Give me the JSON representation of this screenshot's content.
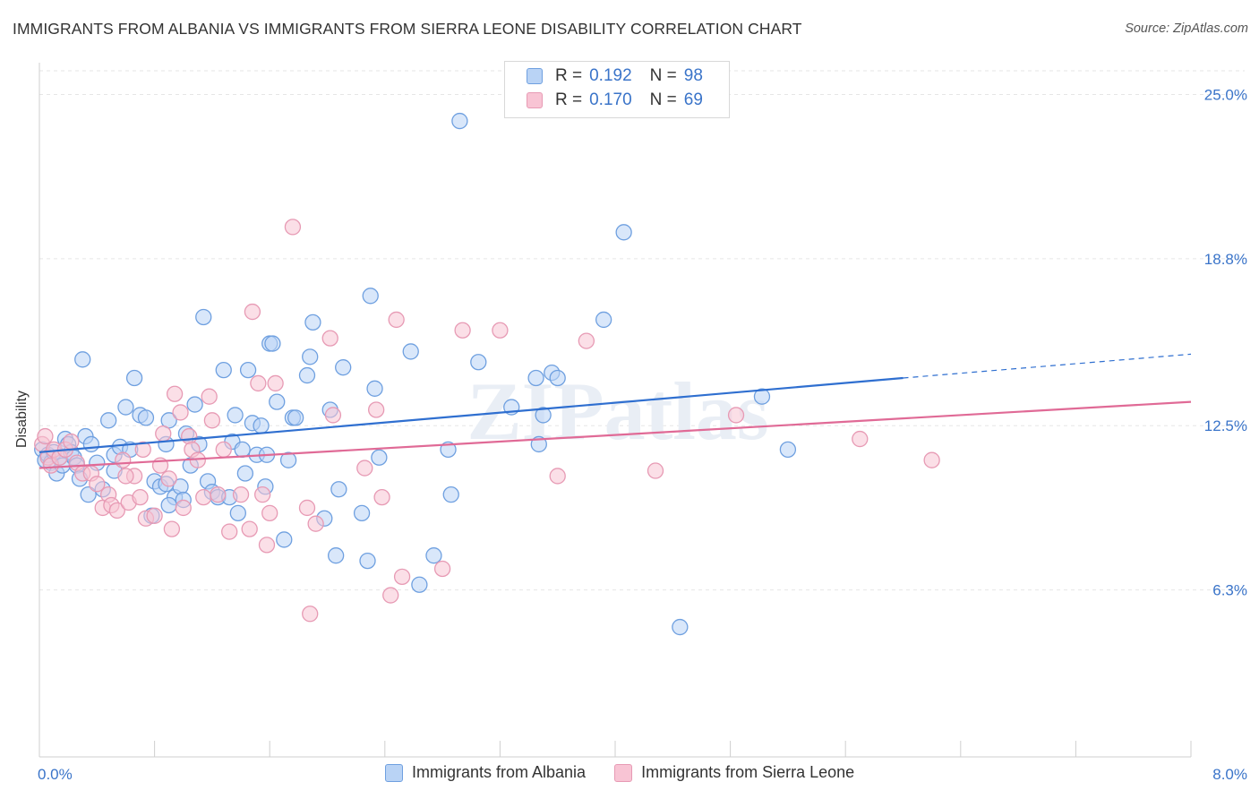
{
  "title": "IMMIGRANTS FROM ALBANIA VS IMMIGRANTS FROM SIERRA LEONE DISABILITY CORRELATION CHART",
  "source": "Source: ZipAtlas.com",
  "watermark": "ZIPatlas",
  "legend_top": {
    "rows": [
      {
        "r_label": "R =",
        "r_value": "0.192",
        "n_label": "N =",
        "n_value": "98"
      },
      {
        "r_label": "R =",
        "r_value": "0.170",
        "n_label": "N =",
        "n_value": "69"
      }
    ]
  },
  "legend_bottom": [
    "Immigrants from Albania",
    "Immigrants from Sierra Leone"
  ],
  "colors": {
    "albania_fill": "#b9d3f5",
    "albania_stroke": "#6fa0e0",
    "albania_line": "#2f6fd0",
    "sierra_fill": "#f8c4d4",
    "sierra_stroke": "#e79ab4",
    "sierra_line": "#e06a96",
    "tick_text": "#3a74c9",
    "grid": "#e6e6e6"
  },
  "chart_data": {
    "type": "scatter",
    "title": "IMMIGRANTS FROM ALBANIA VS IMMIGRANTS FROM SIERRA LEONE DISABILITY CORRELATION CHART",
    "xlabel": "",
    "ylabel": "Disability",
    "xlim": [
      0,
      8
    ],
    "ylim": [
      0,
      26.2
    ],
    "x_tick_labels": [
      {
        "value": 0,
        "label": "0.0%"
      },
      {
        "value": 8,
        "label": "8.0%"
      }
    ],
    "y_tick_labels": [
      {
        "value": 6.3,
        "label": "6.3%"
      },
      {
        "value": 12.5,
        "label": "12.5%"
      },
      {
        "value": 18.8,
        "label": "18.8%"
      },
      {
        "value": 25.0,
        "label": "25.0%"
      }
    ],
    "grid": true,
    "legend_placement": "top-center",
    "series": [
      {
        "name": "Immigrants from Albania",
        "R": 0.192,
        "N": 98,
        "trend": {
          "x0": 0,
          "y0": 11.5,
          "x1": 6.0,
          "y1": 14.3,
          "dash_to_x": 8.0,
          "dash_to_y": 15.2
        },
        "points": [
          [
            0.02,
            11.6
          ],
          [
            0.04,
            11.2
          ],
          [
            0.06,
            11.4
          ],
          [
            0.08,
            11.1
          ],
          [
            0.1,
            11.5
          ],
          [
            0.12,
            10.7
          ],
          [
            0.14,
            11.3
          ],
          [
            0.16,
            11.0
          ],
          [
            0.18,
            12.0
          ],
          [
            0.2,
            11.8
          ],
          [
            0.22,
            11.5
          ],
          [
            0.24,
            11.3
          ],
          [
            0.26,
            11.0
          ],
          [
            0.28,
            10.5
          ],
          [
            0.3,
            15.0
          ],
          [
            0.32,
            12.1
          ],
          [
            0.34,
            9.9
          ],
          [
            0.36,
            11.8
          ],
          [
            0.4,
            11.1
          ],
          [
            0.44,
            10.1
          ],
          [
            0.48,
            12.7
          ],
          [
            0.52,
            11.4
          ],
          [
            0.56,
            11.7
          ],
          [
            0.6,
            13.2
          ],
          [
            0.63,
            11.6
          ],
          [
            0.66,
            14.3
          ],
          [
            0.7,
            12.9
          ],
          [
            0.74,
            12.8
          ],
          [
            0.78,
            9.1
          ],
          [
            0.8,
            10.4
          ],
          [
            0.84,
            10.2
          ],
          [
            0.88,
            11.8
          ],
          [
            0.9,
            12.7
          ],
          [
            0.94,
            9.8
          ],
          [
            0.98,
            10.2
          ],
          [
            1.0,
            9.7
          ],
          [
            1.02,
            12.2
          ],
          [
            1.05,
            11.0
          ],
          [
            1.08,
            13.3
          ],
          [
            1.11,
            11.8
          ],
          [
            1.14,
            16.6
          ],
          [
            1.17,
            10.4
          ],
          [
            1.2,
            10.0
          ],
          [
            1.24,
            9.8
          ],
          [
            1.28,
            14.6
          ],
          [
            1.32,
            9.8
          ],
          [
            1.34,
            11.9
          ],
          [
            1.36,
            12.9
          ],
          [
            1.38,
            9.2
          ],
          [
            1.41,
            11.6
          ],
          [
            1.43,
            10.7
          ],
          [
            1.45,
            14.6
          ],
          [
            1.48,
            12.6
          ],
          [
            1.51,
            11.4
          ],
          [
            1.54,
            12.5
          ],
          [
            1.57,
            10.2
          ],
          [
            1.58,
            11.4
          ],
          [
            1.6,
            15.6
          ],
          [
            1.62,
            15.6
          ],
          [
            1.65,
            13.4
          ],
          [
            1.7,
            8.2
          ],
          [
            1.73,
            11.2
          ],
          [
            1.76,
            12.8
          ],
          [
            1.78,
            12.8
          ],
          [
            1.86,
            14.4
          ],
          [
            1.88,
            15.1
          ],
          [
            1.9,
            16.4
          ],
          [
            1.98,
            9.0
          ],
          [
            2.02,
            13.1
          ],
          [
            2.06,
            7.6
          ],
          [
            2.08,
            10.1
          ],
          [
            2.11,
            14.7
          ],
          [
            2.24,
            9.2
          ],
          [
            2.28,
            7.4
          ],
          [
            2.3,
            17.4
          ],
          [
            2.33,
            13.9
          ],
          [
            2.36,
            11.3
          ],
          [
            2.58,
            15.3
          ],
          [
            2.64,
            6.5
          ],
          [
            2.74,
            7.6
          ],
          [
            2.84,
            11.6
          ],
          [
            2.86,
            9.9
          ],
          [
            2.92,
            24.0
          ],
          [
            3.05,
            14.9
          ],
          [
            3.28,
            13.2
          ],
          [
            3.45,
            14.3
          ],
          [
            3.47,
            11.8
          ],
          [
            3.5,
            12.9
          ],
          [
            3.56,
            14.5
          ],
          [
            3.6,
            14.3
          ],
          [
            3.92,
            16.5
          ],
          [
            4.06,
            19.8
          ],
          [
            4.45,
            4.9
          ],
          [
            5.02,
            13.6
          ],
          [
            5.2,
            11.6
          ],
          [
            0.52,
            10.8
          ],
          [
            0.88,
            10.3
          ],
          [
            0.9,
            9.5
          ]
        ]
      },
      {
        "name": "Immigrants from Sierra Leone",
        "R": 0.17,
        "N": 69,
        "trend": {
          "x0": 0,
          "y0": 10.9,
          "x1": 8.0,
          "y1": 13.4
        },
        "points": [
          [
            0.02,
            11.8
          ],
          [
            0.04,
            12.1
          ],
          [
            0.06,
            11.3
          ],
          [
            0.08,
            11.0
          ],
          [
            0.1,
            11.6
          ],
          [
            0.14,
            11.3
          ],
          [
            0.18,
            11.6
          ],
          [
            0.22,
            11.9
          ],
          [
            0.26,
            11.1
          ],
          [
            0.3,
            10.7
          ],
          [
            0.36,
            10.7
          ],
          [
            0.4,
            10.3
          ],
          [
            0.44,
            9.4
          ],
          [
            0.48,
            9.9
          ],
          [
            0.5,
            9.5
          ],
          [
            0.54,
            9.3
          ],
          [
            0.58,
            11.2
          ],
          [
            0.62,
            9.6
          ],
          [
            0.66,
            10.6
          ],
          [
            0.7,
            9.8
          ],
          [
            0.72,
            11.6
          ],
          [
            0.74,
            9.0
          ],
          [
            0.8,
            9.1
          ],
          [
            0.84,
            11.0
          ],
          [
            0.86,
            12.2
          ],
          [
            0.9,
            10.5
          ],
          [
            0.92,
            8.6
          ],
          [
            0.94,
            13.7
          ],
          [
            0.98,
            13.0
          ],
          [
            1.0,
            9.4
          ],
          [
            1.04,
            12.1
          ],
          [
            1.06,
            11.6
          ],
          [
            1.1,
            11.2
          ],
          [
            1.14,
            9.8
          ],
          [
            1.18,
            13.6
          ],
          [
            1.2,
            12.7
          ],
          [
            1.24,
            9.9
          ],
          [
            1.28,
            11.6
          ],
          [
            1.32,
            8.5
          ],
          [
            1.4,
            9.9
          ],
          [
            1.46,
            8.6
          ],
          [
            1.48,
            16.8
          ],
          [
            1.52,
            14.1
          ],
          [
            1.55,
            9.9
          ],
          [
            1.58,
            8.0
          ],
          [
            1.6,
            9.2
          ],
          [
            1.64,
            14.1
          ],
          [
            1.76,
            20.0
          ],
          [
            1.86,
            9.4
          ],
          [
            1.88,
            5.4
          ],
          [
            1.92,
            8.8
          ],
          [
            2.02,
            15.8
          ],
          [
            2.04,
            12.9
          ],
          [
            2.26,
            10.9
          ],
          [
            2.34,
            13.1
          ],
          [
            2.38,
            9.8
          ],
          [
            2.44,
            6.1
          ],
          [
            2.48,
            16.5
          ],
          [
            2.52,
            6.8
          ],
          [
            2.8,
            7.1
          ],
          [
            2.94,
            16.1
          ],
          [
            3.2,
            16.1
          ],
          [
            3.6,
            10.6
          ],
          [
            3.8,
            15.7
          ],
          [
            4.28,
            10.8
          ],
          [
            4.84,
            12.9
          ],
          [
            5.7,
            12.0
          ],
          [
            6.2,
            11.2
          ],
          [
            0.6,
            10.6
          ]
        ]
      }
    ]
  }
}
